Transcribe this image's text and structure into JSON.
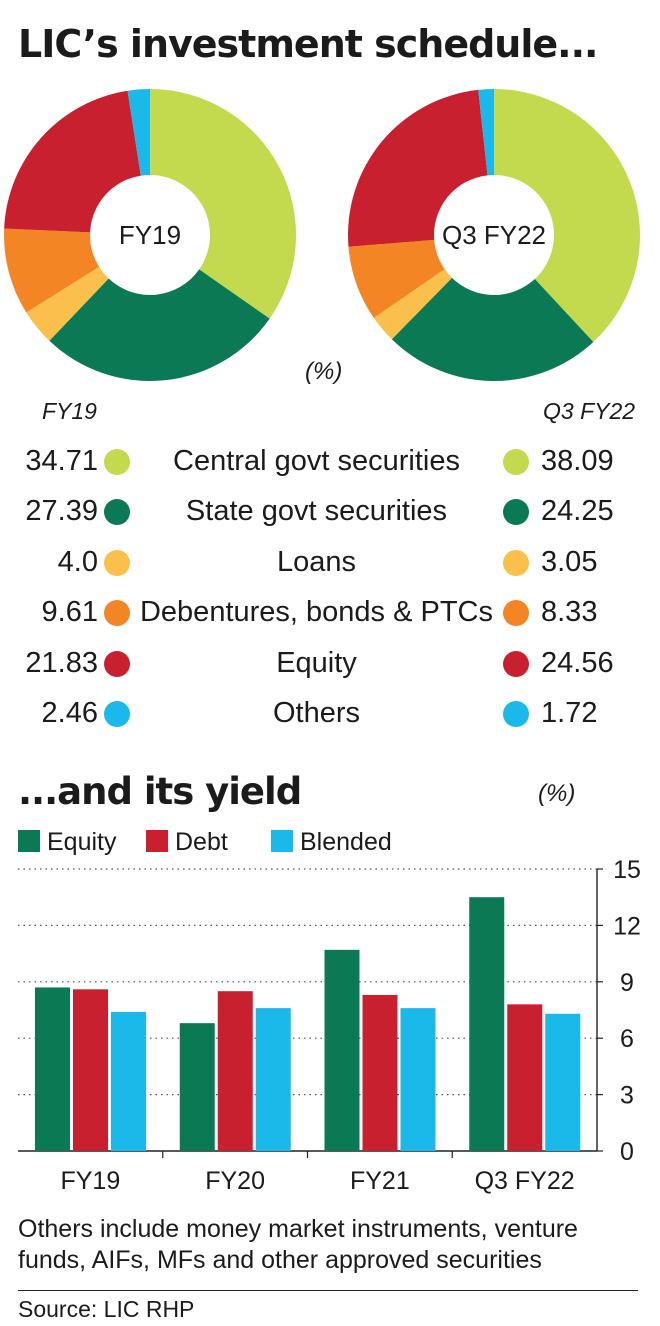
{
  "title": "LIC’s investment schedule...",
  "pie_unit": "(%)",
  "col_left": "FY19",
  "col_right": "Q3 FY22",
  "subtitle": "...and its yield",
  "yield_unit": "(%)",
  "note": "Others include money market instruments, venture funds, AIFs, MFs and other approved securities",
  "source": "Source: LIC RHP",
  "chart_data": [
    {
      "type": "pie",
      "variant": "donut",
      "title": "FY19",
      "unit": "(%)",
      "categories": [
        "Central govt securities",
        "State govt securities",
        "Loans",
        "Debentures, bonds & PTCs",
        "Equity",
        "Others"
      ],
      "values": [
        34.71,
        27.39,
        4.0,
        9.61,
        21.83,
        2.46
      ],
      "value_labels": [
        "34.71",
        "27.39",
        "4.0",
        "9.61",
        "21.83",
        "2.46"
      ],
      "colors": [
        "#c3d94e",
        "#0b7a54",
        "#fbc04c",
        "#f38524",
        "#c8202e",
        "#1bb8ea"
      ]
    },
    {
      "type": "pie",
      "variant": "donut",
      "title": "Q3 FY22",
      "unit": "(%)",
      "categories": [
        "Central govt securities",
        "State govt securities",
        "Loans",
        "Debentures, bonds & PTCs",
        "Equity",
        "Others"
      ],
      "values": [
        38.09,
        24.25,
        3.05,
        8.33,
        24.56,
        1.72
      ],
      "value_labels": [
        "38.09",
        "24.25",
        "3.05",
        "8.33",
        "24.56",
        "1.72"
      ],
      "colors": [
        "#c3d94e",
        "#0b7a54",
        "#fbc04c",
        "#f38524",
        "#c8202e",
        "#1bb8ea"
      ]
    },
    {
      "type": "bar",
      "title": "...and its yield",
      "unit": "(%)",
      "categories": [
        "FY19",
        "FY20",
        "FY21",
        "Q3 FY22"
      ],
      "series": [
        {
          "name": "Equity",
          "color": "#0b7a54",
          "values": [
            8.7,
            6.8,
            10.7,
            13.5
          ]
        },
        {
          "name": "Debt",
          "color": "#c8202e",
          "values": [
            8.6,
            8.5,
            8.3,
            7.8
          ]
        },
        {
          "name": "Blended",
          "color": "#1bb8ea",
          "values": [
            7.4,
            7.6,
            7.6,
            7.3
          ]
        }
      ],
      "ylim": [
        0,
        15
      ],
      "yticks": [
        0,
        3,
        6,
        9,
        12,
        15
      ],
      "ytick_labels": [
        "0",
        "3",
        "6",
        "9",
        "12",
        "15"
      ],
      "y_axis_side": "right",
      "grid": "dotted horizontal",
      "legend": "top-left"
    }
  ]
}
